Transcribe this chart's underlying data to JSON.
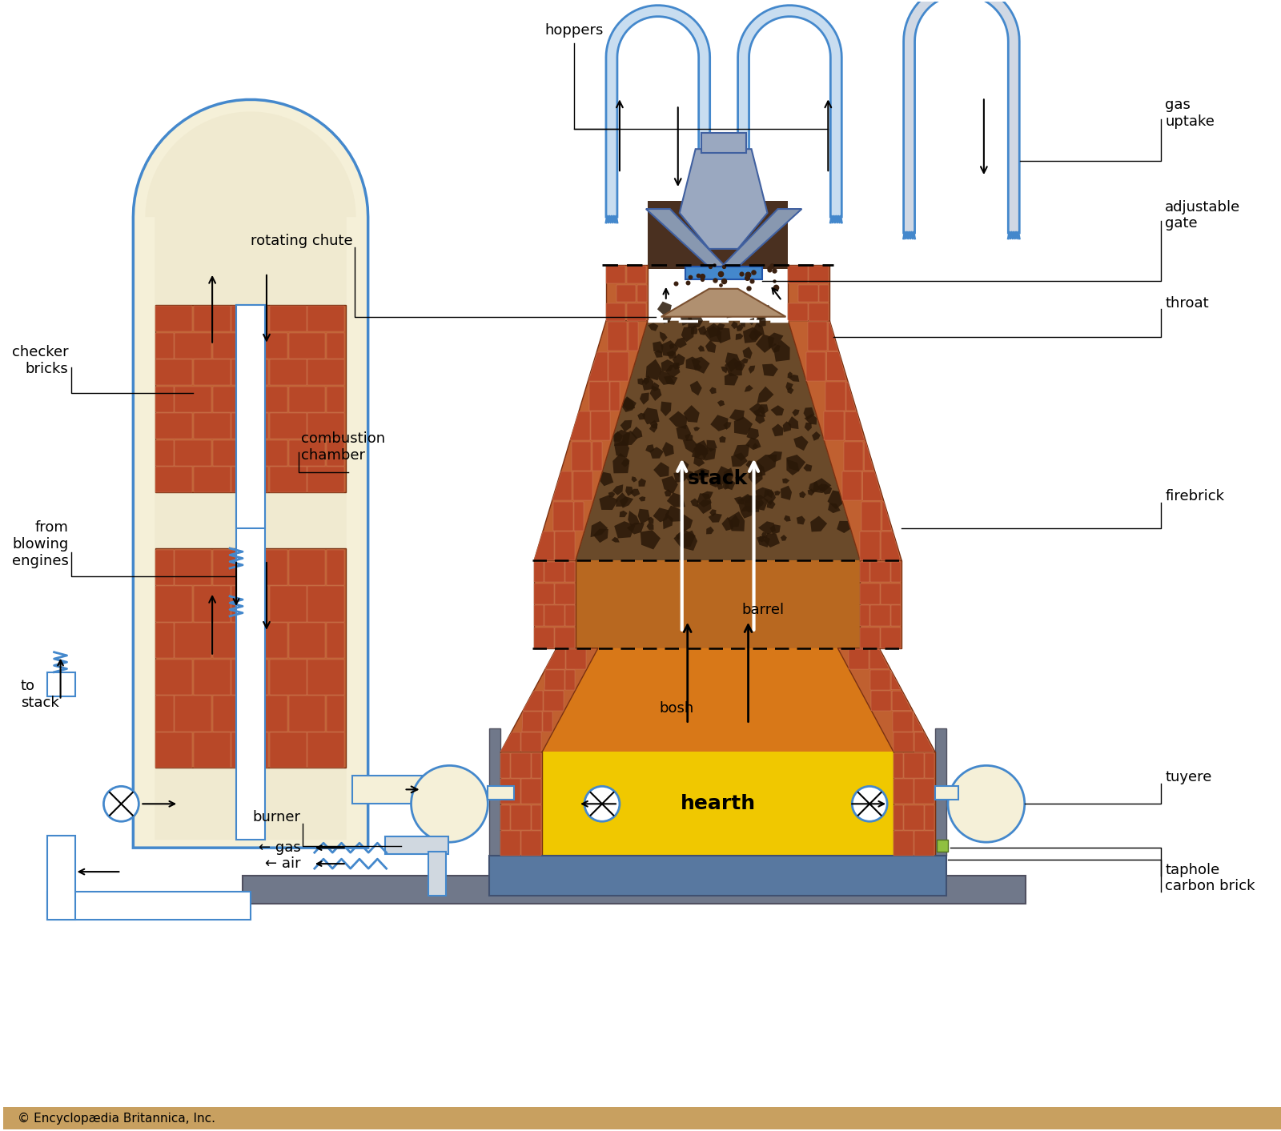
{
  "bg_color": "#ffffff",
  "copyright": "© Encyclopædia Britannica, Inc.",
  "colors": {
    "blue_outline": "#4488cc",
    "light_blue_fill": "#c8ddf0",
    "gray_fill": "#c0c8d4",
    "cream_fill": "#f5f0d8",
    "brick_face": "#b84828",
    "brick_bg": "#c06030",
    "orange_fill": "#e08030",
    "yellow_fill": "#f0c800",
    "dark_ore": "#5a3a20",
    "medium_ore": "#9a6030",
    "light_ore": "#d07020",
    "steel_blue": "#6080a0",
    "dark_gray": "#70788a",
    "medium_gray": "#909098",
    "blue_line": "#4488cc",
    "brown_chute": "#9a7050"
  },
  "labels": {
    "hoppers": "hoppers",
    "gas_uptake": "gas\nuptake",
    "adjustable_gate": "adjustable\ngate",
    "rotating_chute": "rotating chute",
    "throat": "throat",
    "checker_bricks": "checker\nbricks",
    "combustion_chamber": "combustion\nchamber",
    "from_blowing_engines": "from\nblowing\nengines",
    "to_stack": "to\nstack",
    "stack": "stack",
    "firebrick": "firebrick",
    "barrel": "barrel",
    "tuyere": "tuyere",
    "bosh": "bosh",
    "hearth": "hearth",
    "taphole": "taphole",
    "carbon_brick": "carbon brick",
    "burner": "burner",
    "gas": "gas",
    "air": "air"
  }
}
